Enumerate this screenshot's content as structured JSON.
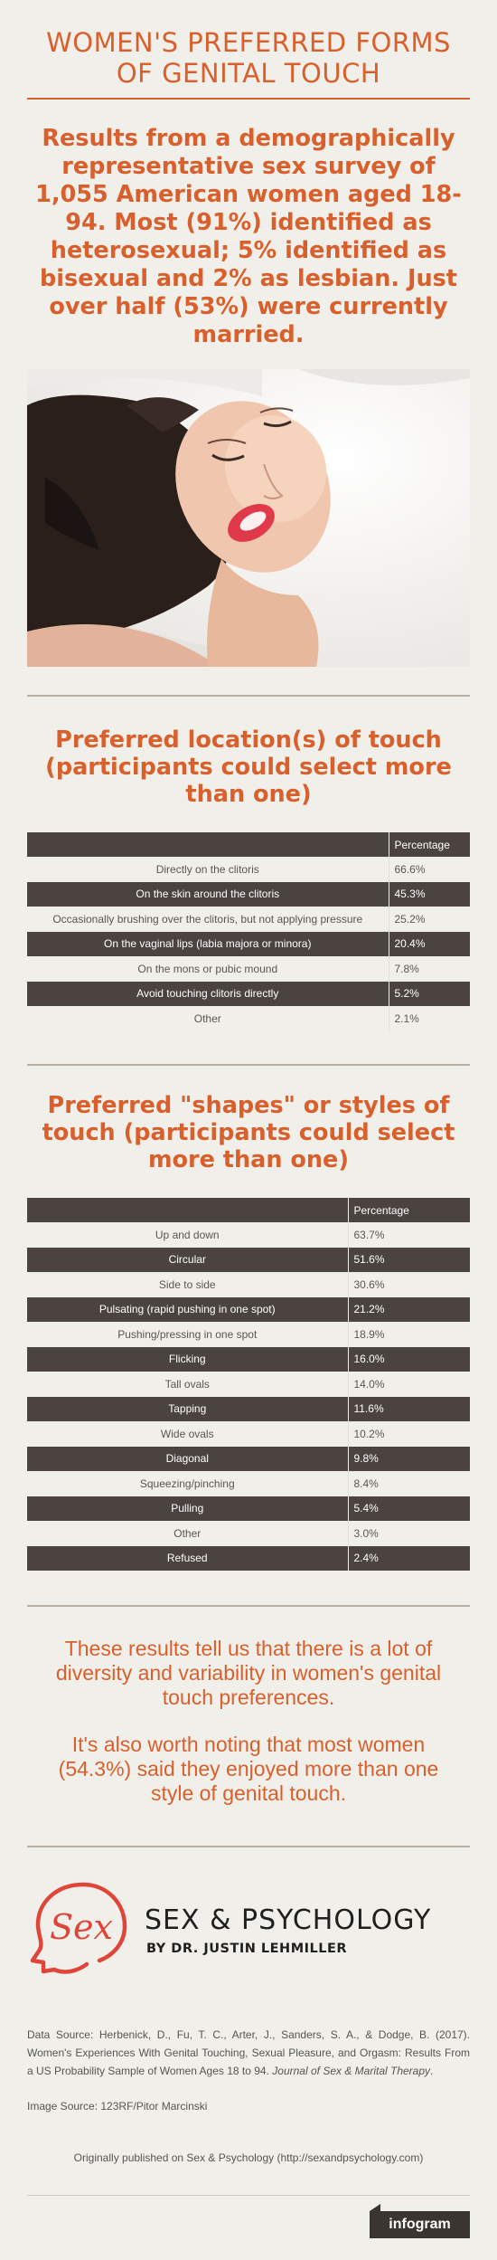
{
  "title": "WOMEN'S PREFERRED FORMS OF GENITAL TOUCH",
  "intro": "Results from a demographically representative sex survey of 1,055 American women aged 18-94. Most (91%) identified as heterosexual; 5% identified as bisexual and 2% as lesbian. Just over half (53%) were currently married.",
  "location": {
    "title": "Preferred location(s) of touch (participants could select more than one)",
    "header": "Percentage",
    "rows": [
      {
        "label": "Directly on the clitoris",
        "value": "66.6%"
      },
      {
        "label": "On the skin around the clitoris",
        "value": "45.3%"
      },
      {
        "label": "Occasionally brushing over the clitoris, but not applying pressure",
        "value": "25.2%"
      },
      {
        "label": "On the vaginal lips (labia majora or minora)",
        "value": "20.4%"
      },
      {
        "label": "On the mons or pubic mound",
        "value": "7.8%"
      },
      {
        "label": "Avoid touching clitoris directly",
        "value": "5.2%"
      },
      {
        "label": "Other",
        "value": "2.1%"
      }
    ]
  },
  "styles": {
    "title": "Preferred \"shapes\" or styles of touch (participants could select more than one)",
    "header": "Percentage",
    "rows": [
      {
        "label": "Up and down",
        "value": "63.7%"
      },
      {
        "label": "Circular",
        "value": "51.6%"
      },
      {
        "label": "Side to side",
        "value": "30.6%"
      },
      {
        "label": "Pulsating (rapid pushing in one spot)",
        "value": "21.2%"
      },
      {
        "label": "Pushing/pressing in one spot",
        "value": "18.9%"
      },
      {
        "label": "Flicking",
        "value": "16.0%"
      },
      {
        "label": "Tall ovals",
        "value": "14.0%"
      },
      {
        "label": "Tapping",
        "value": "11.6%"
      },
      {
        "label": "Wide ovals",
        "value": "10.2%"
      },
      {
        "label": "Diagonal",
        "value": "9.8%"
      },
      {
        "label": "Squeezing/pinching",
        "value": "8.4%"
      },
      {
        "label": "Pulling",
        "value": "5.4%"
      },
      {
        "label": "Other",
        "value": "3.0%"
      },
      {
        "label": "Refused",
        "value": "2.4%"
      }
    ]
  },
  "conclusion": {
    "p1": "These results tell us that there is a lot of diversity and variability in women's genital touch preferences.",
    "p2": "It's also worth noting that most women (54.3%) said they enjoyed more than one style of genital touch."
  },
  "brand": {
    "logo_text": "Sex",
    "name": "SEX & PSYCHOLOGY",
    "byline": "BY DR. JUSTIN LEHMILLER"
  },
  "source": {
    "prefix": "Data Source: Herbenick, D., Fu, T. C., Arter, J., Sanders, S. A., & Dodge, B. (2017). Women's Experiences With Genital Touching, Sexual Pleasure, and Orgasm: Results From a US Probability Sample of Women Ages 18 to 94.",
    "journal": "Journal of Sex & Marital Therapy",
    "suffix": "."
  },
  "image_source": "Image Source: 123RF/Pitor Marcinski",
  "published": "Originally published on Sex & Psychology (http://sexandpsychology.com)",
  "footer_badge": "infogram",
  "colors": {
    "accent": "#d9602d",
    "table_dark": "#4b433f",
    "background": "#f1efe9"
  }
}
